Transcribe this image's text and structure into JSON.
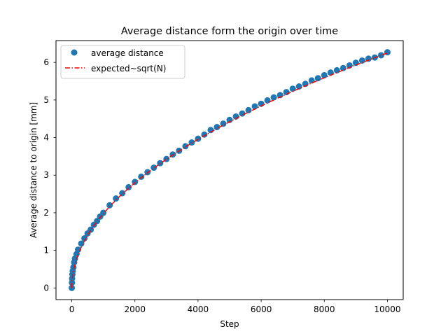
{
  "chart_data": {
    "type": "scatter",
    "title": "Average distance form the origin over time",
    "xlabel": "Step",
    "ylabel": "Average distance to origin [mm]",
    "xlim": [
      -500,
      10500
    ],
    "ylim": [
      -0.31,
      6.58
    ],
    "xticks": [
      0,
      2000,
      4000,
      6000,
      8000,
      10000
    ],
    "yticks": [
      0,
      1,
      2,
      3,
      4,
      5,
      6
    ],
    "legend_position": "upper-left",
    "grid": false,
    "series": [
      {
        "name": "average distance",
        "kind": "markers",
        "color": "#1f77b4",
        "x": [
          0,
          5,
          10,
          20,
          30,
          50,
          75,
          100,
          150,
          200,
          300,
          400,
          500,
          600,
          700,
          800,
          900,
          1000,
          1200,
          1400,
          1600,
          1800,
          2000,
          2200,
          2400,
          2600,
          2800,
          3000,
          3200,
          3400,
          3600,
          3800,
          4000,
          4200,
          4400,
          4600,
          4800,
          5000,
          5200,
          5400,
          5600,
          5800,
          6000,
          6200,
          6400,
          6600,
          6800,
          7000,
          7200,
          7400,
          7600,
          7800,
          8000,
          8200,
          8400,
          8600,
          8800,
          9000,
          9200,
          9400,
          9600,
          9800,
          10000
        ],
        "y": [
          0.0,
          0.14,
          0.25,
          0.36,
          0.45,
          0.55,
          0.68,
          0.78,
          0.9,
          1.02,
          1.18,
          1.32,
          1.45,
          1.55,
          1.68,
          1.78,
          1.9,
          2.0,
          2.2,
          2.38,
          2.52,
          2.68,
          2.82,
          2.96,
          3.08,
          3.2,
          3.32,
          3.43,
          3.55,
          3.65,
          3.77,
          3.87,
          3.97,
          4.08,
          4.2,
          4.28,
          4.37,
          4.47,
          4.56,
          4.64,
          4.73,
          4.83,
          4.9,
          4.99,
          5.07,
          5.13,
          5.21,
          5.3,
          5.36,
          5.43,
          5.52,
          5.58,
          5.66,
          5.73,
          5.79,
          5.85,
          5.92,
          5.99,
          6.05,
          6.1,
          6.13,
          6.19,
          6.27
        ]
      },
      {
        "name": "expected~sqrt(N)",
        "kind": "dashdot-line",
        "color": "#ff0000",
        "function": "sqrt",
        "coefficient": 0.0625,
        "x_range": [
          0,
          10000
        ]
      }
    ]
  }
}
